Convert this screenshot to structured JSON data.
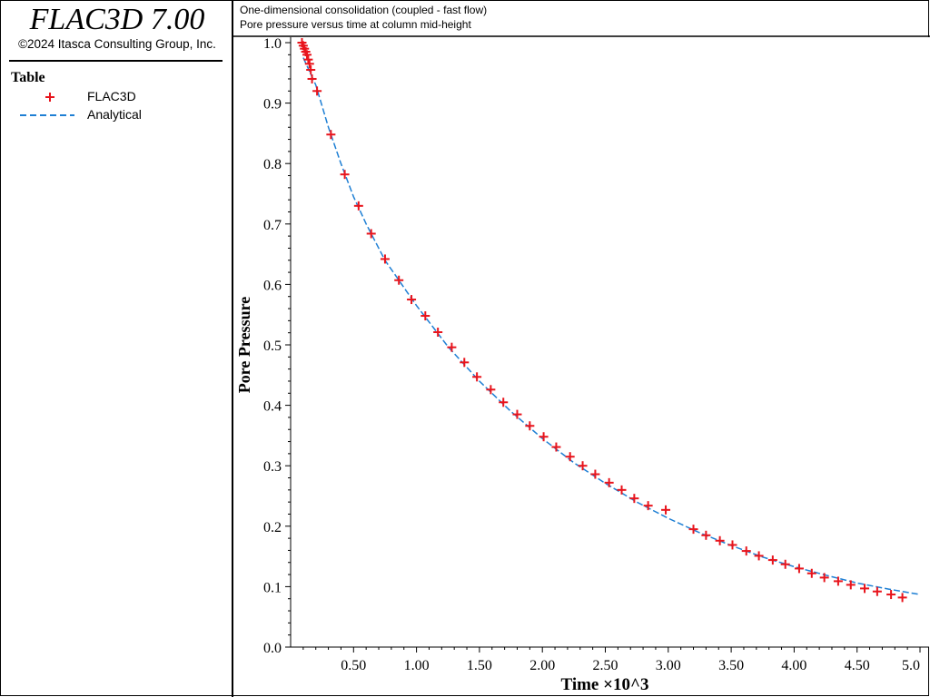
{
  "app": {
    "title": "FLAC3D 7.00",
    "copyright": "©2024 Itasca Consulting Group, Inc."
  },
  "legend": {
    "heading": "Table",
    "items": [
      {
        "label": "FLAC3D",
        "color": "#e8141c",
        "marker": "plus"
      },
      {
        "label": "Analytical",
        "color": "#1e7fd4",
        "marker": "dashed-line"
      }
    ]
  },
  "captions": {
    "line1": "One-dimensional consolidation (coupled - fast flow)",
    "line2": "Pore pressure versus time at column mid-height"
  },
  "chart_data": {
    "type": "scatter",
    "xlabel": "Time ×10^3",
    "ylabel": "Pore Pressure",
    "xlim": [
      0.0,
      5.0
    ],
    "ylim": [
      0.0,
      1.0
    ],
    "xticks": [
      "0.50",
      "1.00",
      "1.50",
      "2.00",
      "2.50",
      "3.00",
      "3.50",
      "4.00",
      "4.50",
      "5.0"
    ],
    "xtick_values": [
      0.5,
      1.0,
      1.5,
      2.0,
      2.5,
      3.0,
      3.5,
      4.0,
      4.5,
      5.0
    ],
    "yticks": [
      "0.0",
      "0.1",
      "0.2",
      "0.3",
      "0.4",
      "0.5",
      "0.6",
      "0.7",
      "0.8",
      "0.9",
      "1.0"
    ],
    "ytick_values": [
      0.0,
      0.1,
      0.2,
      0.3,
      0.4,
      0.5,
      0.6,
      0.7,
      0.8,
      0.9,
      1.0
    ],
    "series": [
      {
        "name": "FLAC3D",
        "style": "markers",
        "color": "#e8141c",
        "x": [
          0.09,
          0.1,
          0.11,
          0.12,
          0.13,
          0.14,
          0.15,
          0.16,
          0.17,
          0.21,
          0.32,
          0.43,
          0.54,
          0.64,
          0.75,
          0.86,
          0.96,
          1.07,
          1.17,
          1.28,
          1.38,
          1.48,
          1.59,
          1.69,
          1.8,
          1.9,
          2.01,
          2.11,
          2.22,
          2.32,
          2.42,
          2.53,
          2.63,
          2.73,
          2.84,
          2.98,
          3.2,
          3.3,
          3.41,
          3.51,
          3.62,
          3.72,
          3.83,
          3.93,
          4.04,
          4.14,
          4.24,
          4.35,
          4.45,
          4.56,
          4.66,
          4.77,
          4.86
        ],
        "y": [
          1.0,
          0.995,
          0.99,
          0.985,
          0.98,
          0.972,
          0.965,
          0.955,
          0.94,
          0.92,
          0.848,
          0.782,
          0.73,
          0.684,
          0.642,
          0.607,
          0.575,
          0.548,
          0.521,
          0.496,
          0.471,
          0.447,
          0.426,
          0.405,
          0.385,
          0.366,
          0.348,
          0.331,
          0.315,
          0.3,
          0.286,
          0.272,
          0.26,
          0.246,
          0.234,
          0.227,
          0.195,
          0.185,
          0.176,
          0.169,
          0.159,
          0.151,
          0.144,
          0.137,
          0.13,
          0.122,
          0.115,
          0.109,
          0.103,
          0.097,
          0.092,
          0.087,
          0.082
        ]
      },
      {
        "name": "Analytical",
        "style": "dashed",
        "color": "#1e7fd4",
        "x": [
          0.1,
          0.2,
          0.3,
          0.4,
          0.5,
          0.6,
          0.75,
          1.0,
          1.25,
          1.5,
          1.75,
          2.0,
          2.25,
          2.5,
          2.75,
          3.0,
          3.25,
          3.5,
          3.75,
          4.0,
          4.25,
          4.5,
          4.75,
          5.0
        ],
        "y": [
          0.975,
          0.93,
          0.86,
          0.8,
          0.745,
          0.7,
          0.64,
          0.565,
          0.497,
          0.44,
          0.39,
          0.345,
          0.305,
          0.271,
          0.24,
          0.213,
          0.189,
          0.168,
          0.149,
          0.133,
          0.119,
          0.106,
          0.096,
          0.087
        ]
      }
    ]
  }
}
